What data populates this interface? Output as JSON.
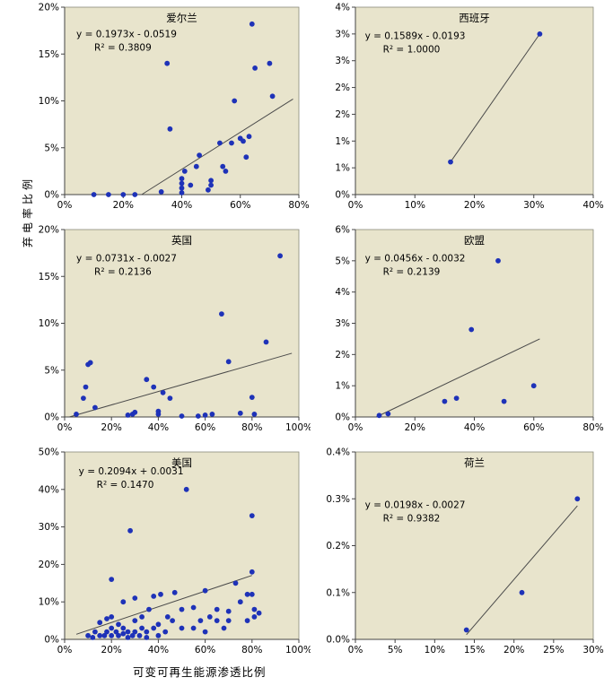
{
  "labels": {
    "y_axis": "弃电率比例",
    "x_axis": "可变可再生能源渗透比例"
  },
  "style": {
    "plot_bg": "#e8e4cc",
    "point_color": "#1e32b8",
    "trend_color": "#4a4a4a",
    "axis_color": "#8a8a7a",
    "text_color": "#000000"
  },
  "chart_data": [
    {
      "type": "scatter",
      "title": "爱尔兰",
      "equation": "y = 0.1973x - 0.0519",
      "r2_label": "R² = 0.3809",
      "x_range": [
        0,
        0.8
      ],
      "y_range": [
        0,
        0.2
      ],
      "x_tick_vals": [
        0,
        0.2,
        0.4,
        0.6,
        0.8
      ],
      "x_tick_labels": [
        "0%",
        "20%",
        "40%",
        "60%",
        "80%"
      ],
      "y_tick_vals": [
        0,
        0.05,
        0.1,
        0.15,
        0.2
      ],
      "y_tick_labels": [
        "0%",
        "5%",
        "10%",
        "15%",
        "20%"
      ],
      "eq_pos": [
        0.05,
        0.16
      ],
      "trend": [
        [
          0.263,
          0.0
        ],
        [
          0.78,
          0.102
        ]
      ],
      "points": [
        [
          0.1,
          0.0
        ],
        [
          0.15,
          0.0
        ],
        [
          0.2,
          0.0
        ],
        [
          0.24,
          0.0
        ],
        [
          0.33,
          0.003
        ],
        [
          0.35,
          0.14
        ],
        [
          0.36,
          0.07
        ],
        [
          0.4,
          0.002
        ],
        [
          0.4,
          0.007
        ],
        [
          0.4,
          0.012
        ],
        [
          0.4,
          0.017
        ],
        [
          0.41,
          0.025
        ],
        [
          0.43,
          0.01
        ],
        [
          0.45,
          0.03
        ],
        [
          0.46,
          0.042
        ],
        [
          0.49,
          0.005
        ],
        [
          0.5,
          0.01
        ],
        [
          0.5,
          0.015
        ],
        [
          0.53,
          0.055
        ],
        [
          0.54,
          0.03
        ],
        [
          0.55,
          0.025
        ],
        [
          0.57,
          0.055
        ],
        [
          0.58,
          0.1
        ],
        [
          0.6,
          0.06
        ],
        [
          0.61,
          0.057
        ],
        [
          0.62,
          0.04
        ],
        [
          0.63,
          0.062
        ],
        [
          0.64,
          0.182
        ],
        [
          0.65,
          0.135
        ],
        [
          0.7,
          0.14
        ],
        [
          0.71,
          0.105
        ]
      ]
    },
    {
      "type": "scatter",
      "title": "西班牙",
      "equation": "y = 0.1589x - 0.0193",
      "r2_label": "R² = 1.0000",
      "x_range": [
        0,
        0.4
      ],
      "y_range": [
        0,
        0.035
      ],
      "x_tick_vals": [
        0,
        0.1,
        0.2,
        0.3,
        0.4
      ],
      "x_tick_labels": [
        "0%",
        "10%",
        "20%",
        "30%",
        "40%"
      ],
      "y_tick_vals": [
        0,
        0.005,
        0.01,
        0.015,
        0.02,
        0.025,
        0.03,
        0.035
      ],
      "y_tick_labels": [
        "0%",
        "1%",
        "1%",
        "2%",
        "2%",
        "3%",
        "3%",
        "4%"
      ],
      "eq_pos": [
        0.04,
        0.17
      ],
      "trend": [
        [
          0.16,
          0.0061
        ],
        [
          0.31,
          0.03
        ]
      ],
      "points": [
        [
          0.16,
          0.0061
        ],
        [
          0.31,
          0.03
        ]
      ]
    },
    {
      "type": "scatter",
      "title": "英国",
      "equation": "y = 0.0731x - 0.0027",
      "r2_label": "R² = 0.2136",
      "x_range": [
        0,
        1.0
      ],
      "y_range": [
        0,
        0.2
      ],
      "x_tick_vals": [
        0,
        0.2,
        0.4,
        0.6,
        0.8,
        1.0
      ],
      "x_tick_labels": [
        "0%",
        "20%",
        "40%",
        "60%",
        "80%",
        "100%"
      ],
      "y_tick_vals": [
        0,
        0.05,
        0.1,
        0.15,
        0.2
      ],
      "y_tick_labels": [
        "0%",
        "5%",
        "10%",
        "15%",
        "20%"
      ],
      "eq_pos": [
        0.05,
        0.17
      ],
      "trend": [
        [
          0.02,
          0.0
        ],
        [
          0.97,
          0.068
        ]
      ],
      "points": [
        [
          0.05,
          0.003
        ],
        [
          0.08,
          0.02
        ],
        [
          0.09,
          0.032
        ],
        [
          0.1,
          0.056
        ],
        [
          0.11,
          0.058
        ],
        [
          0.13,
          0.01
        ],
        [
          0.27,
          0.002
        ],
        [
          0.29,
          0.003
        ],
        [
          0.3,
          0.005
        ],
        [
          0.35,
          0.04
        ],
        [
          0.38,
          0.032
        ],
        [
          0.4,
          0.003
        ],
        [
          0.4,
          0.006
        ],
        [
          0.42,
          0.026
        ],
        [
          0.45,
          0.02
        ],
        [
          0.5,
          0.001
        ],
        [
          0.57,
          0.001
        ],
        [
          0.6,
          0.002
        ],
        [
          0.63,
          0.003
        ],
        [
          0.67,
          0.11
        ],
        [
          0.7,
          0.059
        ],
        [
          0.75,
          0.004
        ],
        [
          0.8,
          0.021
        ],
        [
          0.81,
          0.003
        ],
        [
          0.86,
          0.08
        ],
        [
          0.92,
          0.172
        ]
      ]
    },
    {
      "type": "scatter",
      "title": "欧盟",
      "equation": "y = 0.0456x - 0.0032",
      "r2_label": "R² = 0.2139",
      "x_range": [
        0,
        0.8
      ],
      "y_range": [
        0,
        0.06
      ],
      "x_tick_vals": [
        0,
        0.2,
        0.4,
        0.6,
        0.8
      ],
      "x_tick_labels": [
        "0%",
        "20%",
        "40%",
        "60%",
        "80%"
      ],
      "y_tick_vals": [
        0,
        0.01,
        0.02,
        0.03,
        0.04,
        0.05,
        0.06
      ],
      "y_tick_labels": [
        "0%",
        "1%",
        "2%",
        "3%",
        "4%",
        "5%",
        "6%"
      ],
      "eq_pos": [
        0.04,
        0.17
      ],
      "trend": [
        [
          0.07,
          0.0
        ],
        [
          0.62,
          0.025
        ]
      ],
      "points": [
        [
          0.08,
          0.0005
        ],
        [
          0.11,
          0.001
        ],
        [
          0.3,
          0.005
        ],
        [
          0.34,
          0.006
        ],
        [
          0.39,
          0.028
        ],
        [
          0.48,
          0.05
        ],
        [
          0.5,
          0.005
        ],
        [
          0.6,
          0.01
        ]
      ]
    },
    {
      "type": "scatter",
      "title": "美国",
      "equation": "y = 0.2094x + 0.0031",
      "r2_label": "R² = 0.1470",
      "x_range": [
        0,
        1.0
      ],
      "y_range": [
        0,
        0.5
      ],
      "x_tick_vals": [
        0,
        0.2,
        0.4,
        0.6,
        0.8,
        1.0
      ],
      "x_tick_labels": [
        "0%",
        "20%",
        "40%",
        "60%",
        "80%",
        "100%"
      ],
      "y_tick_vals": [
        0,
        0.1,
        0.2,
        0.3,
        0.4,
        0.5
      ],
      "y_tick_labels": [
        "0%",
        "10%",
        "20%",
        "30%",
        "40%",
        "50%"
      ],
      "eq_pos": [
        0.06,
        0.12
      ],
      "trend": [
        [
          0.05,
          0.0136
        ],
        [
          0.8,
          0.1706
        ]
      ],
      "points": [
        [
          0.1,
          0.01
        ],
        [
          0.12,
          0.005
        ],
        [
          0.13,
          0.02
        ],
        [
          0.15,
          0.01
        ],
        [
          0.15,
          0.045
        ],
        [
          0.17,
          0.01
        ],
        [
          0.18,
          0.02
        ],
        [
          0.18,
          0.055
        ],
        [
          0.2,
          0.01
        ],
        [
          0.2,
          0.03
        ],
        [
          0.2,
          0.06
        ],
        [
          0.2,
          0.16
        ],
        [
          0.22,
          0.02
        ],
        [
          0.23,
          0.01
        ],
        [
          0.23,
          0.04
        ],
        [
          0.25,
          0.015
        ],
        [
          0.25,
          0.03
        ],
        [
          0.25,
          0.1
        ],
        [
          0.27,
          0.005
        ],
        [
          0.27,
          0.02
        ],
        [
          0.28,
          0.29
        ],
        [
          0.29,
          0.01
        ],
        [
          0.3,
          0.02
        ],
        [
          0.3,
          0.05
        ],
        [
          0.3,
          0.11
        ],
        [
          0.32,
          0.01
        ],
        [
          0.33,
          0.03
        ],
        [
          0.33,
          0.06
        ],
        [
          0.35,
          0.005
        ],
        [
          0.35,
          0.02
        ],
        [
          0.36,
          0.08
        ],
        [
          0.38,
          0.03
        ],
        [
          0.38,
          0.115
        ],
        [
          0.4,
          0.01
        ],
        [
          0.4,
          0.04
        ],
        [
          0.41,
          0.12
        ],
        [
          0.43,
          0.02
        ],
        [
          0.44,
          0.06
        ],
        [
          0.46,
          0.05
        ],
        [
          0.47,
          0.125
        ],
        [
          0.5,
          0.03
        ],
        [
          0.5,
          0.08
        ],
        [
          0.52,
          0.4
        ],
        [
          0.55,
          0.03
        ],
        [
          0.55,
          0.085
        ],
        [
          0.58,
          0.05
        ],
        [
          0.6,
          0.02
        ],
        [
          0.6,
          0.13
        ],
        [
          0.62,
          0.06
        ],
        [
          0.65,
          0.05
        ],
        [
          0.65,
          0.08
        ],
        [
          0.68,
          0.03
        ],
        [
          0.7,
          0.05
        ],
        [
          0.7,
          0.075
        ],
        [
          0.73,
          0.15
        ],
        [
          0.75,
          0.1
        ],
        [
          0.78,
          0.05
        ],
        [
          0.78,
          0.12
        ],
        [
          0.8,
          0.33
        ],
        [
          0.8,
          0.18
        ],
        [
          0.8,
          0.12
        ],
        [
          0.81,
          0.08
        ],
        [
          0.81,
          0.06
        ],
        [
          0.83,
          0.07
        ]
      ]
    },
    {
      "type": "scatter",
      "title": "荷兰",
      "equation": "y = 0.0198x - 0.0027",
      "r2_label": "R² = 0.9382",
      "x_range": [
        0,
        0.3
      ],
      "y_range": [
        0,
        0.004
      ],
      "x_tick_vals": [
        0,
        0.05,
        0.1,
        0.15,
        0.2,
        0.25,
        0.3
      ],
      "x_tick_labels": [
        "0%",
        "5%",
        "10%",
        "15%",
        "20%",
        "25%",
        "30%"
      ],
      "y_tick_vals": [
        0,
        0.001,
        0.002,
        0.003,
        0.004
      ],
      "y_tick_labels": [
        "0.0%",
        "0.1%",
        "0.2%",
        "0.3%",
        "0.4%"
      ],
      "eq_pos": [
        0.04,
        0.3
      ],
      "trend": [
        [
          0.14,
          0.0001
        ],
        [
          0.28,
          0.00285
        ]
      ],
      "points": [
        [
          0.14,
          0.0002
        ],
        [
          0.21,
          0.001
        ],
        [
          0.28,
          0.003
        ]
      ]
    }
  ]
}
